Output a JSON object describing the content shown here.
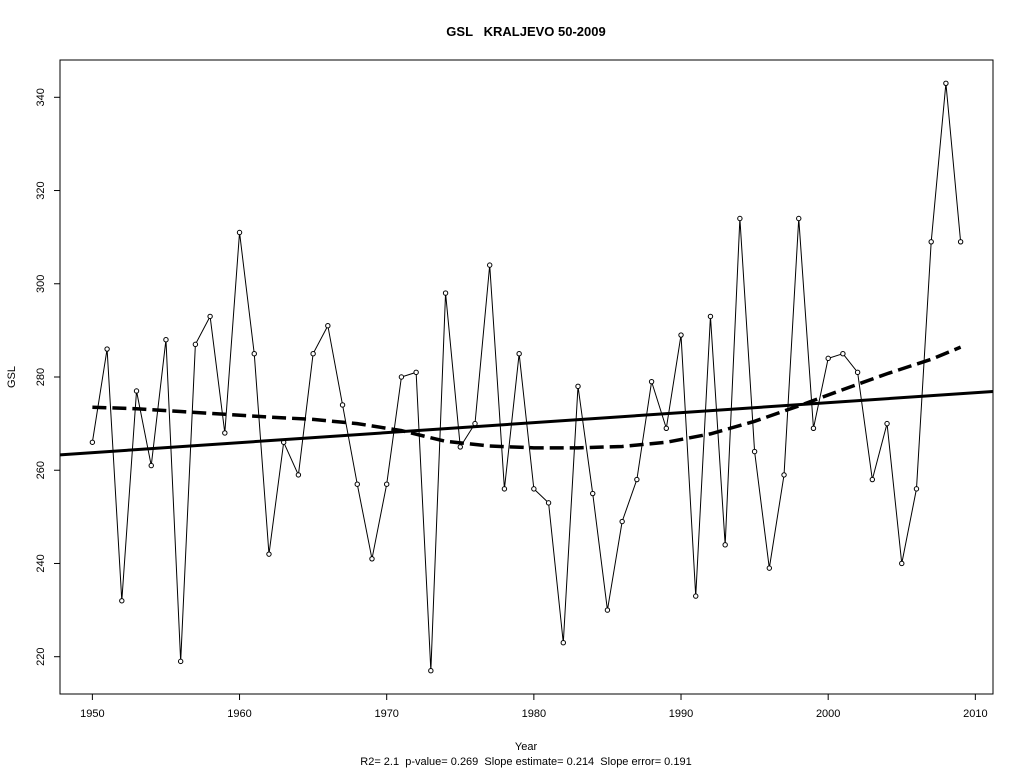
{
  "chart_data": {
    "type": "line",
    "title": "GSL   KRALJEVO 50-2009",
    "xlabel": "Year",
    "ylabel": "GSL",
    "footnote": "R2= 2.1  p-value= 0.269  Slope estimate= 0.214  Slope error= 0.191",
    "xlim": [
      1947.8,
      2011.2
    ],
    "ylim": [
      212,
      348
    ],
    "x_ticks": [
      1950,
      1960,
      1970,
      1980,
      1990,
      2000,
      2010
    ],
    "y_ticks": [
      220,
      240,
      260,
      280,
      300,
      320,
      340
    ],
    "grid": false,
    "series": [
      {
        "style": "thin-solid-with-points",
        "x": [
          1950,
          1951,
          1952,
          1953,
          1954,
          1955,
          1956,
          1957,
          1958,
          1959,
          1960,
          1961,
          1962,
          1963,
          1964,
          1965,
          1966,
          1967,
          1968,
          1969,
          1970,
          1971,
          1972,
          1973,
          1974,
          1975,
          1976,
          1977,
          1978,
          1979,
          1980,
          1981,
          1982,
          1983,
          1984,
          1985,
          1986,
          1987,
          1988,
          1989,
          1990,
          1991,
          1992,
          1993,
          1994,
          1995,
          1996,
          1997,
          1998,
          1999,
          2000,
          2001,
          2002,
          2003,
          2004,
          2005,
          2006,
          2007,
          2008,
          2009
        ],
        "y": [
          266,
          286,
          232,
          277,
          261,
          288,
          219,
          287,
          293,
          268,
          311,
          285,
          242,
          266,
          259,
          285,
          291,
          274,
          257,
          241,
          257,
          280,
          281,
          217,
          298,
          265,
          270,
          304,
          256,
          285,
          256,
          253,
          223,
          278,
          255,
          230,
          249,
          258,
          279,
          269,
          289,
          233,
          293,
          244,
          314,
          264,
          239,
          259,
          314,
          269,
          284,
          285,
          281,
          258,
          270,
          240,
          256,
          309,
          343,
          309
        ]
      },
      {
        "style": "thick-solid",
        "x": [
          1947.8,
          2011.2
        ],
        "y": [
          263.3,
          276.9
        ]
      },
      {
        "style": "thick-dashed",
        "x": [
          1950,
          1953,
          1956,
          1959,
          1962,
          1965,
          1968,
          1971,
          1974,
          1977,
          1980,
          1983,
          1986,
          1989,
          1992,
          1995,
          1998,
          2001,
          2004,
          2007,
          2009
        ],
        "y": [
          273.5,
          273.2,
          272.6,
          272.0,
          271.4,
          270.9,
          270.0,
          268.5,
          266.2,
          265.2,
          264.8,
          264.8,
          265.1,
          266.0,
          267.8,
          270.5,
          273.8,
          277.3,
          280.7,
          283.8,
          286.4
        ]
      }
    ]
  }
}
